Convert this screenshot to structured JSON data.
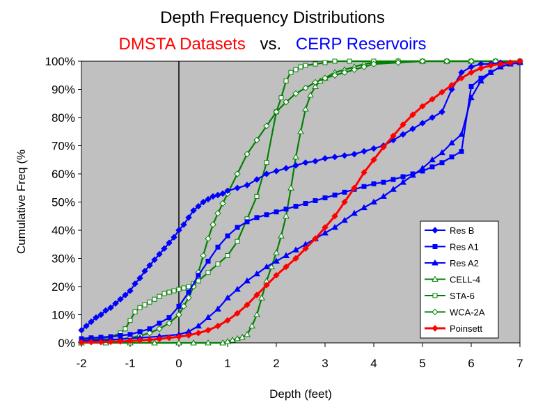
{
  "chart_data": {
    "type": "line",
    "title": "Depth Frequency Distributions",
    "subtitle": {
      "left": "DMSTA Datasets",
      "mid": "vs.",
      "right": "CERP Reservoirs",
      "left_color": "#ff0000",
      "right_color": "#0000ff"
    },
    "xlabel": "Depth (feet)",
    "ylabel": "Cumulative Freq (%",
    "xlim": [
      -2,
      7
    ],
    "ylim": [
      0,
      100
    ],
    "xticks": [
      "-2",
      "-1",
      "0",
      "1",
      "2",
      "3",
      "4",
      "5",
      "6",
      "7"
    ],
    "yticks": [
      "0%",
      "10%",
      "20%",
      "30%",
      "40%",
      "50%",
      "60%",
      "70%",
      "80%",
      "90%",
      "100%"
    ],
    "plot_background": "#c0c0c0",
    "legend_position": "bottom-right",
    "series": [
      {
        "name": "Res B",
        "color": "#0000ff",
        "marker": "diamond",
        "x": [
          -2,
          -1.9,
          -1.8,
          -1.7,
          -1.6,
          -1.5,
          -1.4,
          -1.3,
          -1.2,
          -1.1,
          -1.0,
          -0.9,
          -0.8,
          -0.7,
          -0.6,
          -0.5,
          -0.4,
          -0.3,
          -0.2,
          -0.1,
          0,
          0.1,
          0.2,
          0.3,
          0.4,
          0.5,
          0.6,
          0.7,
          0.8,
          0.9,
          1.0,
          1.2,
          1.4,
          1.6,
          1.8,
          2.0,
          2.2,
          2.4,
          2.6,
          2.8,
          3.0,
          3.2,
          3.4,
          3.6,
          3.8,
          4.0,
          4.2,
          4.4,
          4.6,
          4.8,
          5.0,
          5.2,
          5.4,
          5.6,
          5.8,
          6.0,
          6.2,
          6.4,
          6.6,
          6.8,
          7.0
        ],
        "y": [
          4.5,
          6,
          7.5,
          9,
          10,
          11.5,
          12.5,
          14,
          15.5,
          17,
          18.5,
          21,
          23,
          25.5,
          27.5,
          29.5,
          31.5,
          33.5,
          35.5,
          37.5,
          40,
          42,
          44.5,
          47,
          48.5,
          50,
          51,
          52,
          52.5,
          53,
          54,
          55,
          56,
          58,
          60,
          61,
          62,
          63,
          64,
          64.5,
          65.5,
          66,
          66.5,
          67,
          68,
          69,
          70,
          72,
          74,
          76,
          78,
          80,
          82,
          90,
          96,
          98,
          99,
          99,
          99.5,
          99.5,
          100
        ]
      },
      {
        "name": "Res A1",
        "color": "#0000ff",
        "marker": "square",
        "x": [
          -2,
          -1.8,
          -1.6,
          -1.4,
          -1.2,
          -1.0,
          -0.8,
          -0.6,
          -0.4,
          -0.2,
          0,
          0.2,
          0.4,
          0.6,
          0.8,
          1.0,
          1.2,
          1.4,
          1.6,
          1.8,
          2.0,
          2.2,
          2.4,
          2.6,
          2.8,
          3.0,
          3.2,
          3.4,
          3.6,
          3.8,
          4.0,
          4.2,
          4.4,
          4.6,
          4.8,
          5.0,
          5.2,
          5.4,
          5.6,
          5.8,
          6.0,
          6.2,
          6.4,
          6.6,
          6.8,
          7.0
        ],
        "y": [
          1.5,
          1.8,
          2,
          2.2,
          2.6,
          3,
          4,
          5,
          7,
          9,
          13,
          18,
          24,
          29,
          34,
          38,
          41,
          43,
          44.5,
          45.5,
          46.5,
          47.5,
          48.5,
          49.5,
          50.5,
          51.5,
          52.5,
          53.5,
          54.5,
          55.5,
          56.5,
          57,
          58,
          59,
          60,
          61,
          62.5,
          64,
          66,
          68,
          91,
          94,
          96,
          98,
          99,
          99.5
        ]
      },
      {
        "name": "Res A2",
        "color": "#0000ff",
        "marker": "triangle",
        "x": [
          -2,
          -1.6,
          -1.2,
          -0.8,
          -0.4,
          0,
          0.2,
          0.4,
          0.6,
          0.8,
          1.0,
          1.2,
          1.4,
          1.6,
          1.8,
          2.0,
          2.2,
          2.4,
          2.6,
          2.8,
          3.0,
          3.2,
          3.4,
          3.6,
          3.8,
          4.0,
          4.2,
          4.4,
          4.6,
          4.8,
          5.0,
          5.2,
          5.4,
          5.6,
          5.8,
          6.0,
          6.2,
          6.4,
          6.6,
          6.8,
          7.0
        ],
        "y": [
          0.8,
          1,
          1.3,
          1.8,
          2.3,
          3,
          4,
          6,
          9,
          12,
          16,
          19,
          22,
          24.5,
          27,
          29,
          31,
          33,
          35,
          37,
          39,
          41,
          43.5,
          46,
          48,
          50,
          52,
          54.5,
          57,
          59.5,
          62,
          65,
          67.5,
          71,
          74,
          87,
          93,
          96,
          98,
          99,
          99.5
        ]
      },
      {
        "name": "CELL-4",
        "color": "#008000",
        "marker": "open-triangle",
        "x": [
          -2,
          -1.5,
          -1.0,
          -0.5,
          0,
          0.3,
          0.6,
          0.9,
          1.0,
          1.1,
          1.2,
          1.3,
          1.4,
          1.5,
          1.6,
          1.7,
          1.8,
          1.9,
          2.0,
          2.1,
          2.2,
          2.3,
          2.4,
          2.5,
          2.6,
          2.7,
          2.8,
          2.9,
          3.0,
          3.2,
          3.4,
          3.6,
          3.8,
          4.0,
          4.5,
          5.0,
          5.5,
          6.0,
          6.5,
          7.0
        ],
        "y": [
          0,
          0,
          0,
          0,
          0,
          0,
          0,
          0,
          0.5,
          1,
          1.5,
          2,
          3,
          6,
          10,
          16,
          22,
          27,
          32,
          38,
          45,
          55,
          66,
          75,
          83,
          88,
          91,
          93,
          94,
          96,
          97,
          98,
          99,
          99.5,
          100,
          100,
          100,
          100,
          100,
          100
        ]
      },
      {
        "name": "STA-6",
        "color": "#008000",
        "marker": "open-square",
        "x": [
          -2,
          -1.8,
          -1.6,
          -1.4,
          -1.2,
          -1.1,
          -1.0,
          -0.9,
          -0.8,
          -0.7,
          -0.6,
          -0.5,
          -0.4,
          -0.3,
          -0.2,
          -0.1,
          0,
          0.1,
          0.2,
          0.3,
          0.4,
          0.6,
          0.8,
          1.0,
          1.2,
          1.4,
          1.6,
          1.8,
          2.0,
          2.1,
          2.2,
          2.3,
          2.4,
          2.5,
          2.6,
          2.8,
          3.0,
          3.2,
          3.5,
          4.0,
          4.5,
          5.0,
          5.5,
          6.0,
          6.5,
          7.0
        ],
        "y": [
          1,
          1.3,
          1.6,
          2,
          3.5,
          5,
          8,
          11,
          12.5,
          13.5,
          14.5,
          15.5,
          16.5,
          17.5,
          18,
          18.5,
          19,
          19.5,
          20,
          21,
          22,
          25,
          28,
          31,
          36,
          44,
          52,
          64,
          82,
          87,
          93,
          96,
          97,
          98,
          98.5,
          99,
          99.5,
          100,
          100,
          100,
          100,
          100,
          100,
          100,
          100,
          100
        ]
      },
      {
        "name": "WCA-2A",
        "color": "#008000",
        "marker": "open-diamond",
        "x": [
          -2,
          -1.8,
          -1.6,
          -1.4,
          -1.2,
          -1.0,
          -0.8,
          -0.6,
          -0.4,
          -0.2,
          0,
          0.1,
          0.2,
          0.3,
          0.4,
          0.5,
          0.6,
          0.7,
          0.8,
          0.9,
          1.0,
          1.2,
          1.4,
          1.6,
          1.8,
          2.0,
          2.2,
          2.4,
          2.6,
          2.8,
          3.0,
          3.2,
          3.4,
          3.6,
          3.8,
          4.0,
          4.5,
          5.0,
          5.5,
          6.0,
          6.5,
          7.0
        ],
        "y": [
          0.5,
          0.6,
          0.8,
          1,
          1.3,
          1.8,
          2.5,
          3.5,
          5,
          7,
          10,
          13,
          16,
          20,
          25,
          31,
          37,
          42,
          46,
          49.5,
          53,
          60,
          67,
          72,
          77,
          82,
          85.5,
          88.5,
          90.5,
          92.5,
          94,
          95,
          96,
          97,
          98,
          99,
          99.5,
          100,
          100,
          100,
          100,
          100
        ]
      },
      {
        "name": "Poinsett",
        "color": "#ff0000",
        "marker": "diamond",
        "x": [
          -2,
          -1.8,
          -1.6,
          -1.4,
          -1.2,
          -1.0,
          -0.8,
          -0.6,
          -0.4,
          -0.2,
          0,
          0.2,
          0.4,
          0.6,
          0.8,
          1.0,
          1.2,
          1.4,
          1.6,
          1.8,
          2.0,
          2.2,
          2.4,
          2.6,
          2.8,
          3.0,
          3.2,
          3.4,
          3.6,
          3.8,
          4.0,
          4.2,
          4.4,
          4.6,
          4.8,
          5.0,
          5.2,
          5.4,
          5.6,
          5.8,
          6.0,
          6.2,
          6.4,
          6.6,
          6.8,
          7.0
        ],
        "y": [
          0.2,
          0.3,
          0.3,
          0.4,
          0.5,
          0.7,
          0.9,
          1.1,
          1.4,
          1.8,
          2.2,
          2.7,
          3.5,
          4.5,
          6,
          8,
          10.5,
          13.5,
          17,
          20.5,
          24,
          27,
          30,
          33.5,
          37,
          41,
          45,
          50,
          55,
          60.5,
          65,
          69.5,
          73.5,
          77.5,
          81,
          84,
          86.5,
          89,
          91.5,
          94,
          96,
          97.5,
          98.5,
          99,
          99.5,
          100
        ]
      }
    ]
  }
}
